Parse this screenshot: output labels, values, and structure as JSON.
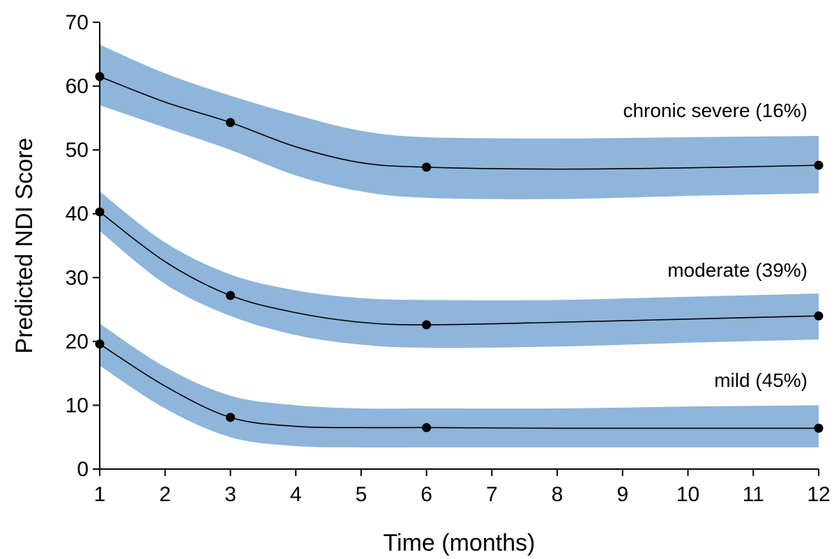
{
  "chart_data": {
    "type": "line",
    "xlabel": "Time (months)",
    "ylabel": "Predicted NDI Score",
    "xlim": [
      1,
      12
    ],
    "ylim": [
      0,
      70
    ],
    "x_ticks": [
      1,
      2,
      3,
      4,
      5,
      6,
      7,
      8,
      9,
      10,
      11,
      12
    ],
    "y_ticks": [
      0,
      10,
      20,
      30,
      40,
      50,
      60,
      70
    ],
    "grid": false,
    "band_color": "#8fb5da",
    "line_color": "#000000",
    "series": [
      {
        "name": "chronic severe (16%)",
        "x": [
          1,
          3,
          6,
          12
        ],
        "values": [
          61.5,
          54.3,
          47.3,
          47.6
        ],
        "curve": [
          [
            1,
            61.5
          ],
          [
            2,
            57.5
          ],
          [
            3,
            54.3
          ],
          [
            4,
            50.5
          ],
          [
            5,
            48.0
          ],
          [
            6,
            47.3
          ],
          [
            8,
            47.0
          ],
          [
            10,
            47.2
          ],
          [
            12,
            47.6
          ]
        ],
        "band_upper": [
          [
            1,
            66.5
          ],
          [
            2,
            62.0
          ],
          [
            3,
            58.5
          ],
          [
            4,
            55.5
          ],
          [
            5,
            53.0
          ],
          [
            6,
            52.0
          ],
          [
            8,
            51.8
          ],
          [
            10,
            52.0
          ],
          [
            12,
            52.2
          ]
        ],
        "band_lower": [
          [
            1,
            57.0
          ],
          [
            2,
            53.5
          ],
          [
            3,
            50.0
          ],
          [
            4,
            46.0
          ],
          [
            5,
            43.5
          ],
          [
            6,
            42.5
          ],
          [
            8,
            42.3
          ],
          [
            10,
            42.8
          ],
          [
            12,
            43.2
          ]
        ]
      },
      {
        "name": "moderate (39%)",
        "x": [
          1,
          3,
          6,
          12
        ],
        "values": [
          40.3,
          27.2,
          22.6,
          24.0
        ],
        "curve": [
          [
            1,
            40.3
          ],
          [
            2,
            32.5
          ],
          [
            3,
            27.2
          ],
          [
            4,
            24.5
          ],
          [
            5,
            23.0
          ],
          [
            6,
            22.6
          ],
          [
            8,
            23.0
          ],
          [
            10,
            23.5
          ],
          [
            12,
            24.0
          ]
        ],
        "band_upper": [
          [
            1,
            43.5
          ],
          [
            2,
            35.5
          ],
          [
            3,
            30.5
          ],
          [
            4,
            28.0
          ],
          [
            5,
            26.8
          ],
          [
            6,
            26.5
          ],
          [
            8,
            26.5
          ],
          [
            10,
            27.0
          ],
          [
            12,
            27.5
          ]
        ],
        "band_lower": [
          [
            1,
            37.3
          ],
          [
            2,
            29.0
          ],
          [
            3,
            24.0
          ],
          [
            4,
            21.0
          ],
          [
            5,
            19.5
          ],
          [
            6,
            19.0
          ],
          [
            8,
            19.2
          ],
          [
            10,
            19.8
          ],
          [
            12,
            20.3
          ]
        ]
      },
      {
        "name": "mild (45%)",
        "x": [
          1,
          3,
          6,
          12
        ],
        "values": [
          19.6,
          8.1,
          6.5,
          6.4
        ],
        "curve": [
          [
            1,
            19.6
          ],
          [
            2,
            13.0
          ],
          [
            3,
            8.1
          ],
          [
            4,
            6.7
          ],
          [
            5,
            6.5
          ],
          [
            6,
            6.5
          ],
          [
            8,
            6.4
          ],
          [
            10,
            6.4
          ],
          [
            12,
            6.4
          ]
        ],
        "band_upper": [
          [
            1,
            22.8
          ],
          [
            2,
            16.0
          ],
          [
            3,
            11.5
          ],
          [
            4,
            10.0
          ],
          [
            5,
            9.5
          ],
          [
            6,
            9.5
          ],
          [
            8,
            9.5
          ],
          [
            10,
            9.8
          ],
          [
            12,
            10.0
          ]
        ],
        "band_lower": [
          [
            1,
            16.2
          ],
          [
            2,
            9.5
          ],
          [
            3,
            5.0
          ],
          [
            4,
            3.6
          ],
          [
            5,
            3.4
          ],
          [
            6,
            3.4
          ],
          [
            8,
            3.4
          ],
          [
            10,
            3.4
          ],
          [
            12,
            3.4
          ]
        ]
      }
    ]
  }
}
